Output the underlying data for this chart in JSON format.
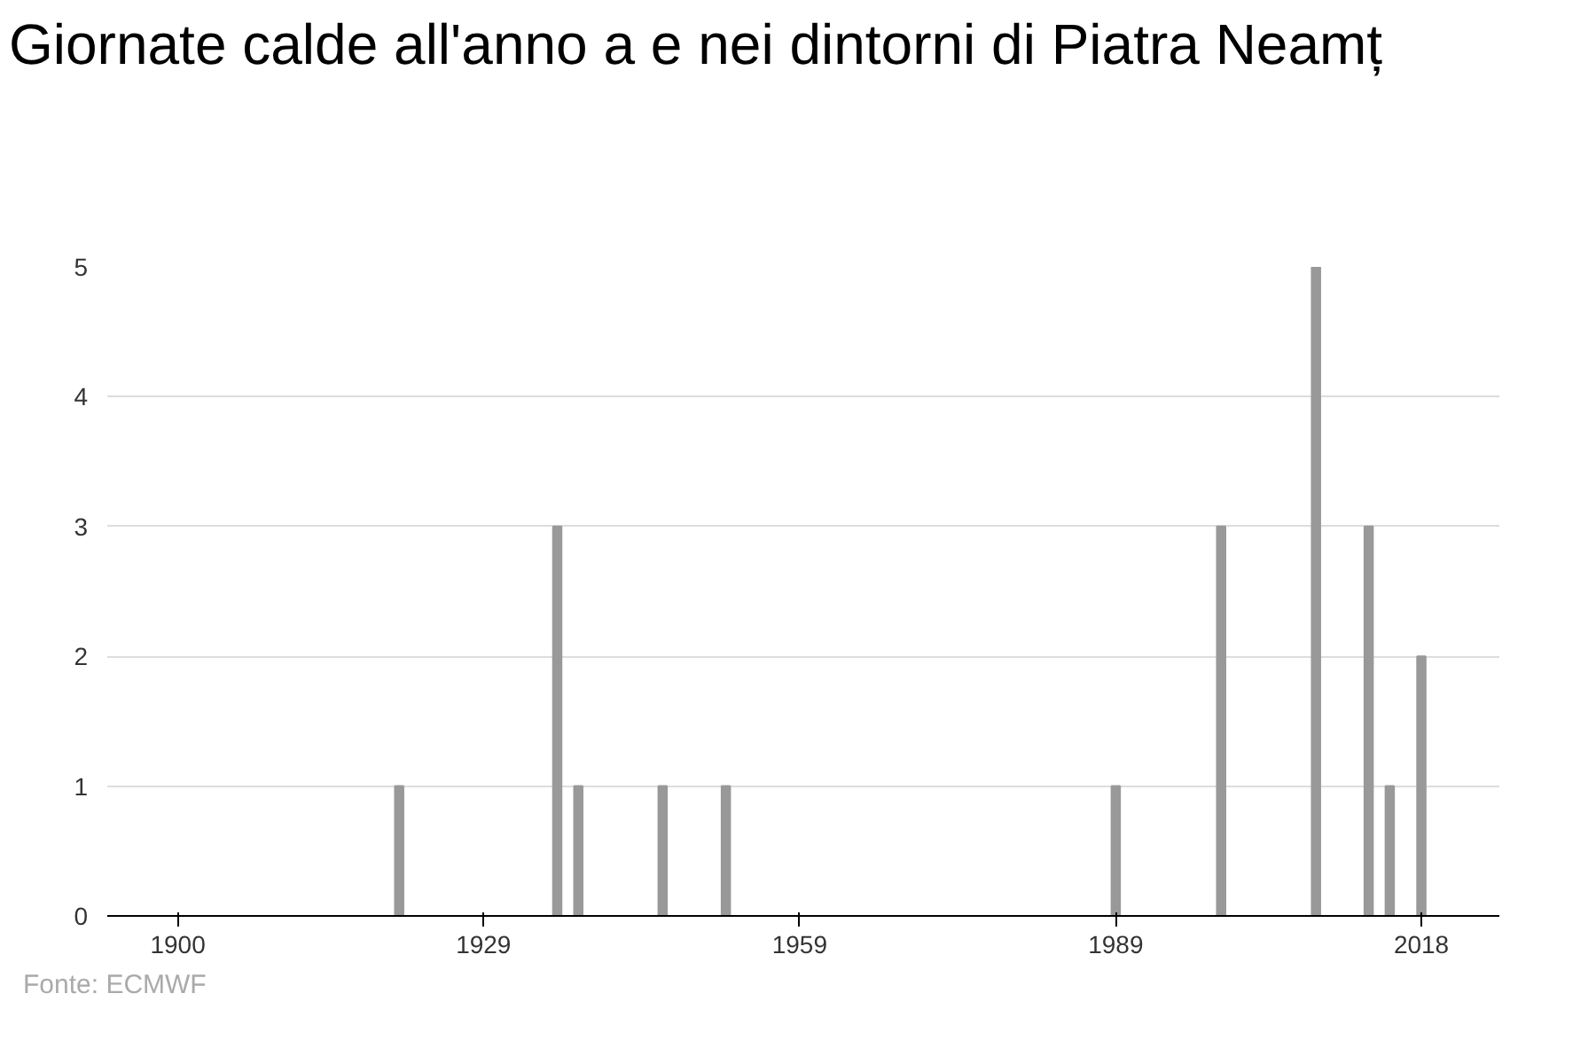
{
  "chart_data": {
    "type": "bar",
    "title": "Giornate calde all'anno a e nei dintorni di Piatra Neamț",
    "x": [
      1921,
      1936,
      1938,
      1946,
      1952,
      1989,
      1999,
      2008,
      2013,
      2015,
      2018
    ],
    "values": [
      1,
      3,
      1,
      1,
      1,
      1,
      3,
      5,
      3,
      1,
      2
    ],
    "color": "#999999",
    "xlim": [
      1893.3,
      2025.4
    ],
    "xticks": [
      1900,
      1929,
      1959,
      1989,
      2018
    ],
    "ylim": [
      0,
      5
    ],
    "yticks": [
      0,
      1,
      2,
      3,
      4,
      5
    ],
    "grid": "y",
    "annotations": [
      "Fonte: ECMWF"
    ]
  }
}
